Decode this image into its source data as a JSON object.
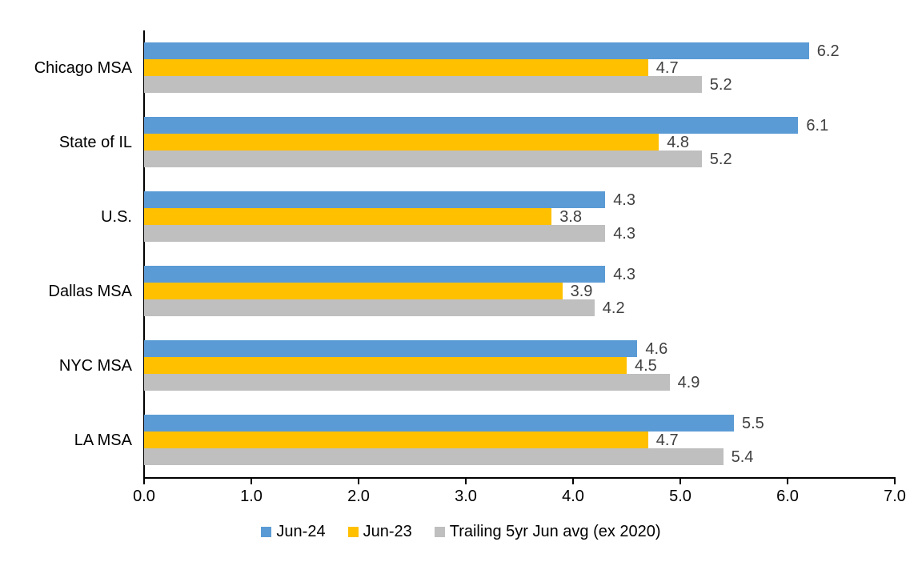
{
  "chart_data": {
    "type": "bar",
    "orientation": "horizontal",
    "title": "",
    "xlabel": "",
    "ylabel": "",
    "categories": [
      "Chicago MSA",
      "State of IL",
      "U.S.",
      "Dallas MSA",
      "NYC MSA",
      "LA MSA"
    ],
    "series": [
      {
        "name": "Jun-24",
        "color": "#5B9BD5",
        "values": [
          6.2,
          6.1,
          4.3,
          4.3,
          4.6,
          5.5
        ]
      },
      {
        "name": "Jun-23",
        "color": "#FFC000",
        "values": [
          4.7,
          4.8,
          3.8,
          3.9,
          4.5,
          4.7
        ]
      },
      {
        "name": "Trailing 5yr Jun avg (ex 2020)",
        "color": "#BFBFBF",
        "values": [
          5.2,
          5.2,
          4.3,
          4.2,
          4.9,
          5.4
        ]
      }
    ],
    "xlim": [
      0,
      7
    ],
    "x_ticks": [
      "0.0",
      "1.0",
      "2.0",
      "3.0",
      "4.0",
      "5.0",
      "6.0",
      "7.0"
    ],
    "grid": false,
    "data_labels": true,
    "data_label_format": "0.0",
    "data_label_color": "#404040",
    "axis_color": "#000000",
    "legend_position": "bottom"
  }
}
